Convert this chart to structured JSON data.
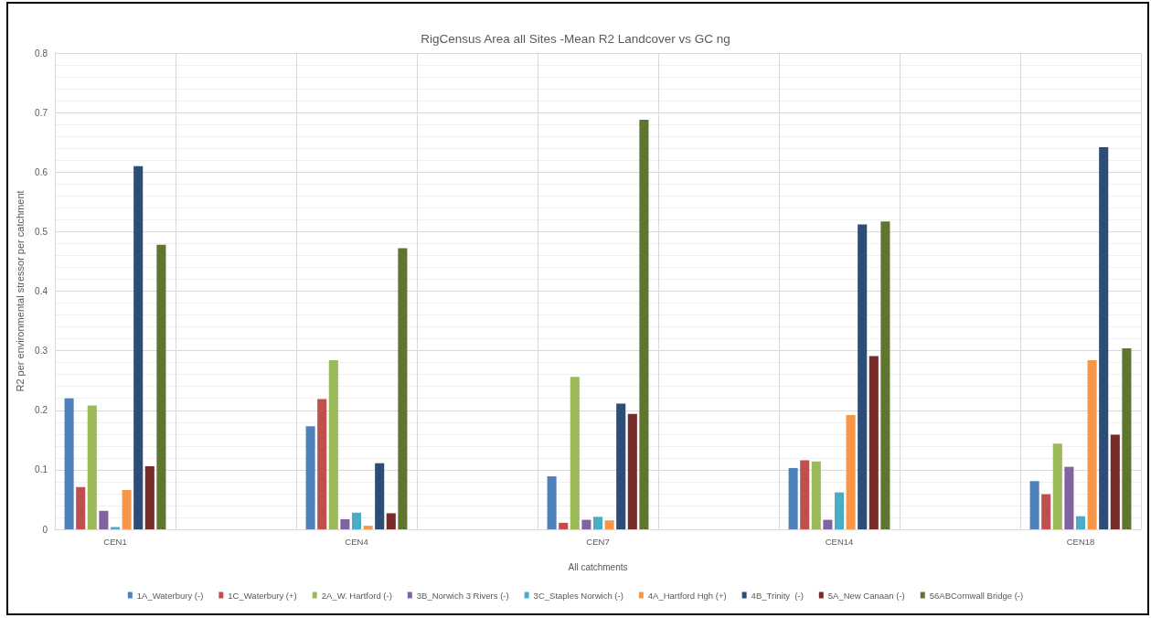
{
  "chart_data": {
    "type": "bar",
    "title": "RigCensus Area all Sites -Mean R2 Landcover vs GC ng",
    "xlabel": "All catchments",
    "ylabel": "R2 per environmental stressor per catchment",
    "categories": [
      "CEN1",
      null,
      "CEN4",
      null,
      "CEN7",
      null,
      "CEN14",
      null,
      "CEN18"
    ],
    "series": [
      {
        "name": "1A_Waterbury (-)",
        "color": "#4f81bd",
        "values": [
          0.22,
          null,
          0.173,
          null,
          0.089,
          null,
          0.103,
          null,
          0.081
        ]
      },
      {
        "name": "1C_Waterbury (+)",
        "color": "#c0504d",
        "values": [
          0.071,
          null,
          0.219,
          null,
          0.011,
          null,
          0.116,
          null,
          0.059
        ]
      },
      {
        "name": "2A_W. Hartford (-)",
        "color": "#9bbb59",
        "values": [
          0.208,
          null,
          0.284,
          null,
          0.256,
          null,
          0.114,
          null,
          0.144
        ]
      },
      {
        "name": "3B_Norwich 3 Rivers (-)",
        "color": "#8064a2",
        "values": [
          0.031,
          null,
          0.017,
          null,
          0.016,
          null,
          0.016,
          null,
          0.105
        ]
      },
      {
        "name": "3C_Staples Norwich (-)",
        "color": "#4bacc6",
        "values": [
          0.004,
          null,
          0.028,
          null,
          0.021,
          null,
          0.062,
          null,
          0.022
        ]
      },
      {
        "name": "4A_Hartford Hgh (+)",
        "color": "#f79646",
        "values": [
          0.066,
          null,
          0.006,
          null,
          0.015,
          null,
          0.192,
          null,
          0.284
        ]
      },
      {
        "name": "4B_Trinity  (-)",
        "color": "#2c4d75",
        "values": [
          0.61,
          null,
          0.111,
          null,
          0.211,
          null,
          0.512,
          null,
          0.642
        ]
      },
      {
        "name": "5A_New Canaan (-)",
        "color": "#772c2a",
        "values": [
          0.106,
          null,
          0.027,
          null,
          0.194,
          null,
          0.291,
          null,
          0.159
        ]
      },
      {
        "name": "56ABCornwall Bridge (-)",
        "color": "#5f7530",
        "values": [
          0.478,
          null,
          0.472,
          null,
          0.688,
          null,
          0.517,
          null,
          0.304
        ]
      }
    ],
    "ylim": [
      0,
      0.8
    ],
    "yticks": [
      0,
      0.1,
      0.2,
      0.3,
      0.4,
      0.5,
      0.6,
      0.7,
      0.8
    ],
    "grid": true,
    "legend": "bottom"
  }
}
